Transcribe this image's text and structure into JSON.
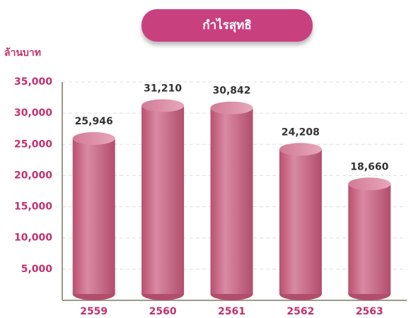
{
  "chart_data": {
    "type": "bar",
    "title": "กำไรสุทธิ",
    "y_label": "ล้านบาท",
    "categories": [
      "2559",
      "2560",
      "2561",
      "2562",
      "2563"
    ],
    "values": [
      25946,
      31210,
      30842,
      24208,
      18660
    ],
    "value_labels": [
      "25,946",
      "31,210",
      "30,842",
      "24,208",
      "18,660"
    ],
    "color": "#cc6a8c",
    "ylim": [
      0,
      35000
    ],
    "yticks": [
      {
        "value": 5000,
        "label": "5,000"
      },
      {
        "value": 10000,
        "label": "10,000"
      },
      {
        "value": 15000,
        "label": "15,000"
      },
      {
        "value": 20000,
        "label": "20,000"
      },
      {
        "value": 25000,
        "label": "25,000"
      },
      {
        "value": 30000,
        "label": "30,000"
      },
      {
        "value": 35000,
        "label": "35,000"
      }
    ],
    "grid": true
  }
}
